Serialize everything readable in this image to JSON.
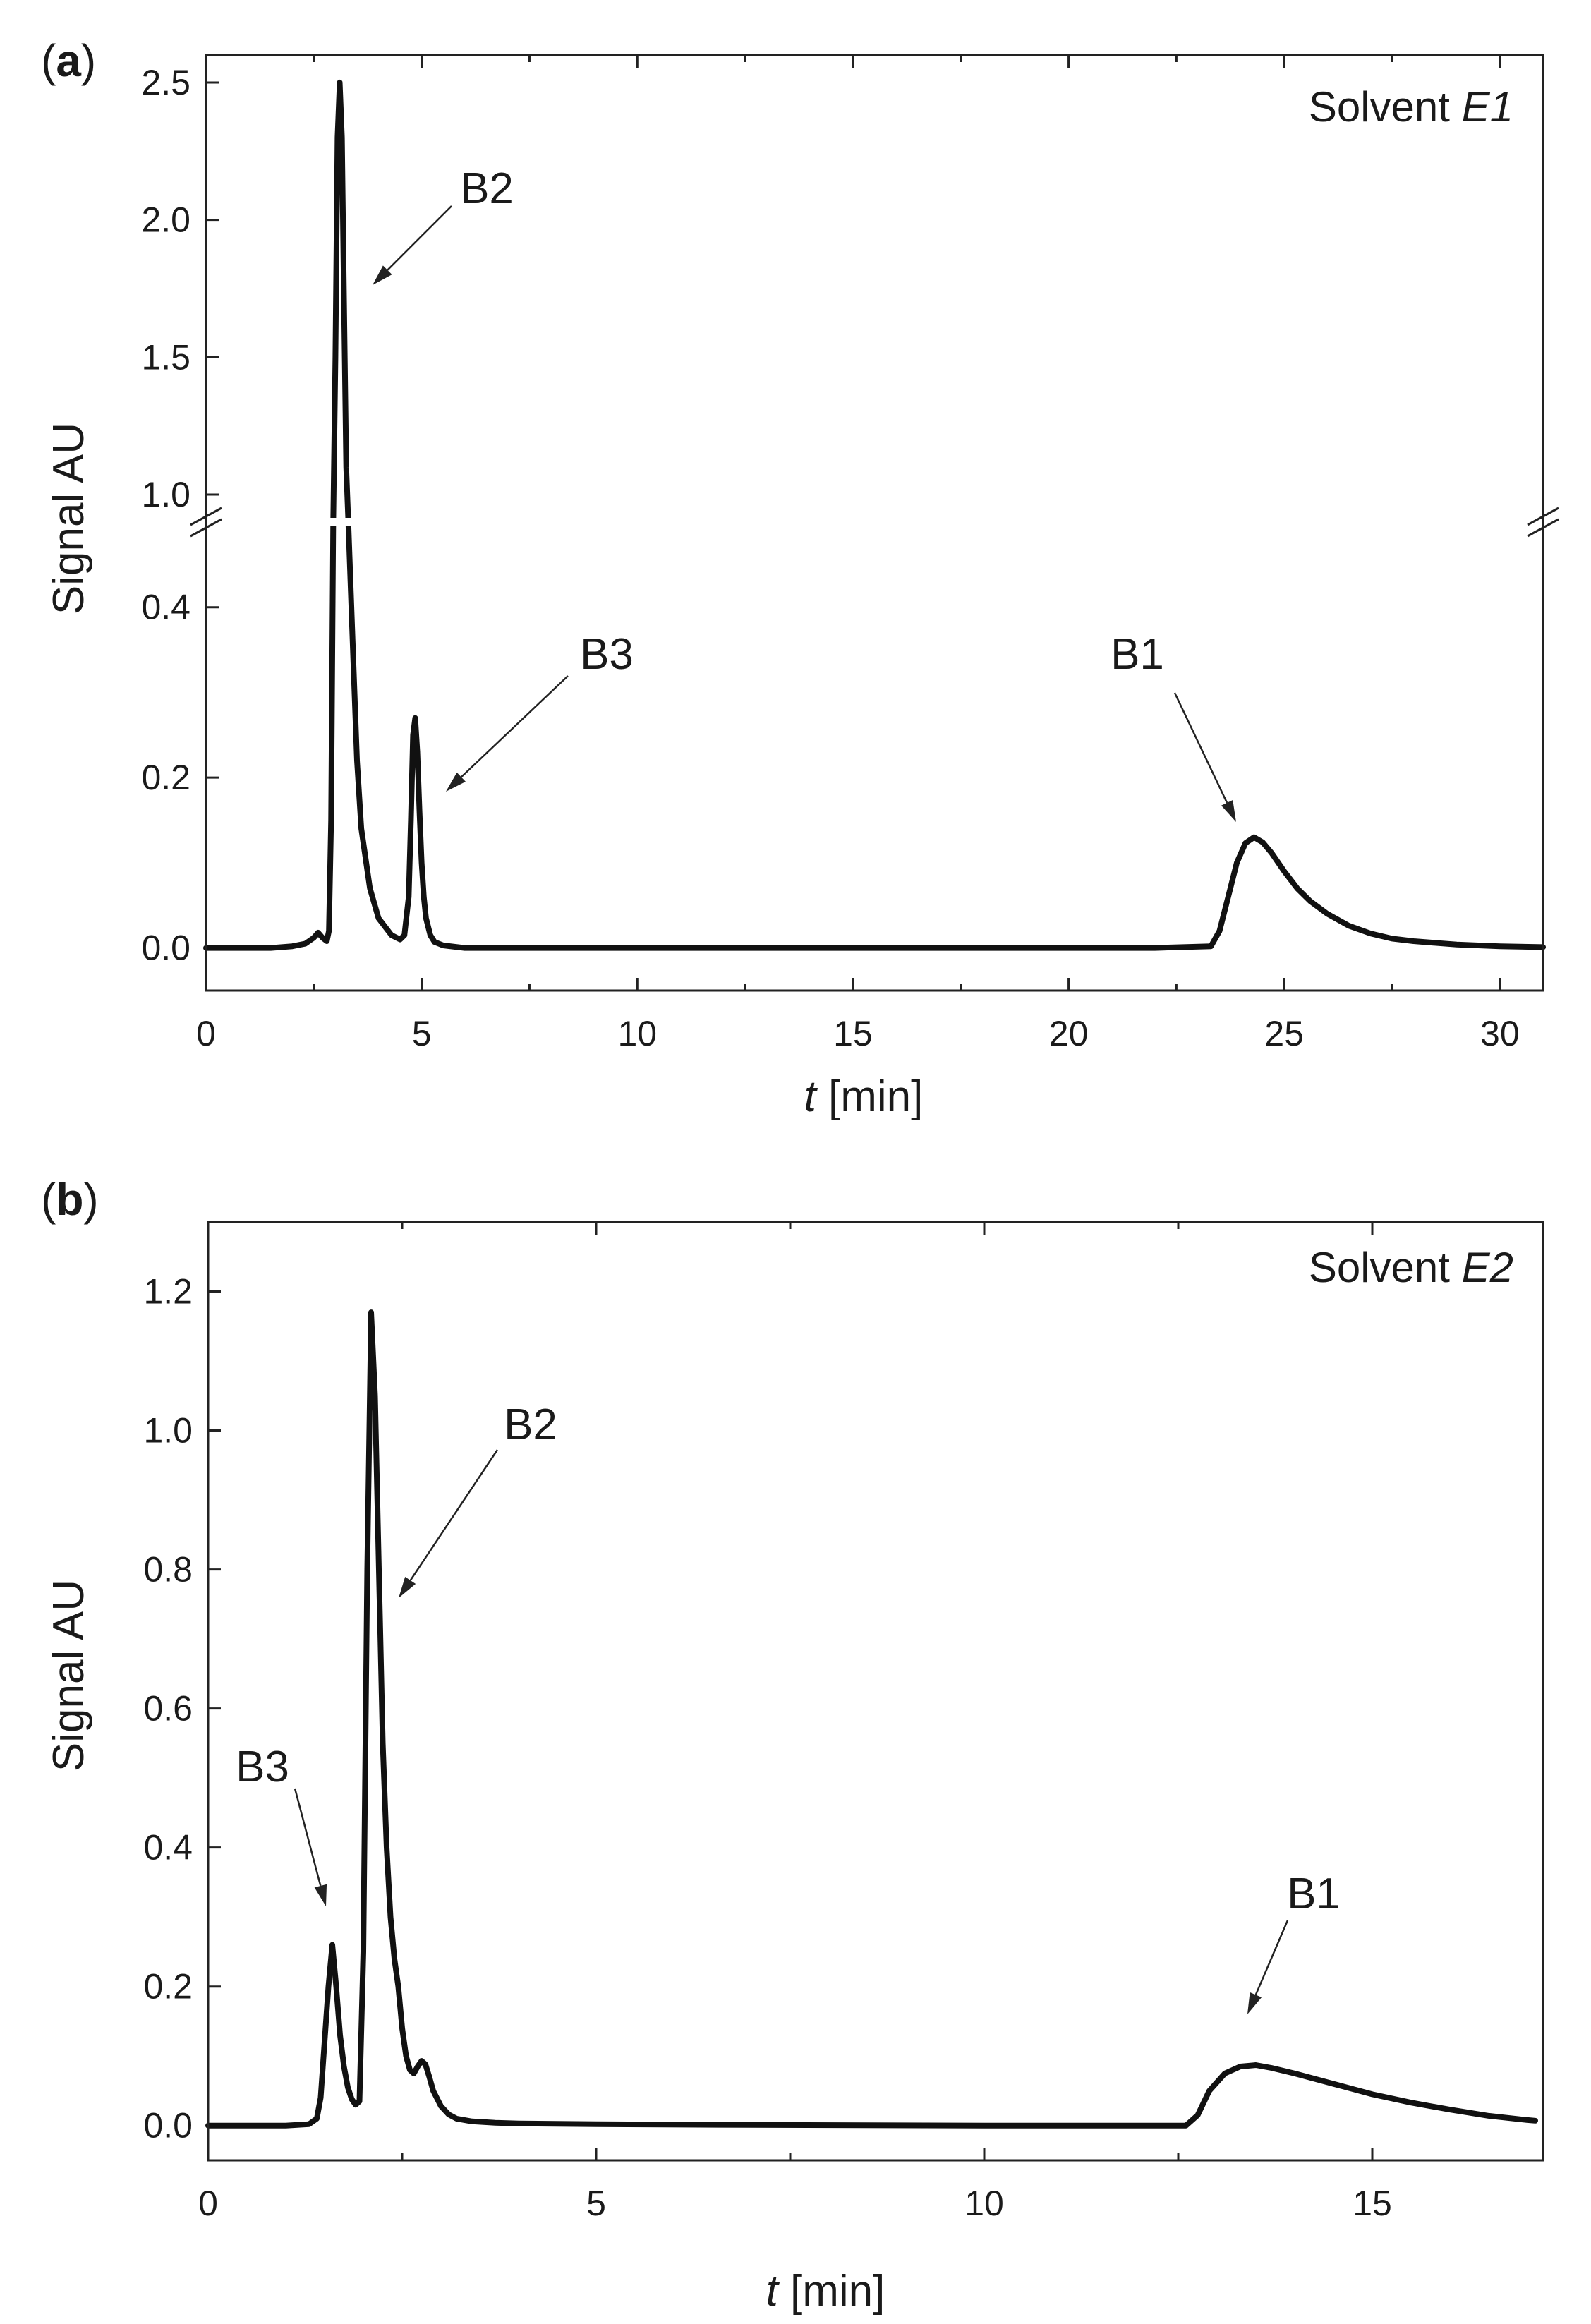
{
  "chart_data": [
    {
      "type": "line",
      "panel": "a",
      "solvent_prefix": "Solvent ",
      "solvent_code": "E1",
      "xlabel_var": "t",
      "xlabel_unit": " [min]",
      "ylabel": "Signal AU",
      "xlim": [
        0,
        31
      ],
      "xticks": [
        0,
        5,
        10,
        15,
        20,
        25,
        30
      ],
      "y_break": {
        "lower": [
          -0.05,
          0.5
        ],
        "upper": [
          0.9,
          2.6
        ]
      },
      "yticks_lower": [
        0.0,
        0.2,
        0.4
      ],
      "yticks_upper": [
        1.0,
        1.5,
        2.0,
        2.5
      ],
      "series": [
        {
          "x": [
            0,
            1.5,
            2.0,
            2.3,
            2.5,
            2.6,
            2.7,
            2.8,
            2.85,
            2.9,
            2.95,
            3.0,
            3.05,
            3.1,
            3.15,
            3.2,
            3.25,
            3.3,
            3.4,
            3.5,
            3.6,
            3.8,
            4.0,
            4.3,
            4.5,
            4.6,
            4.7,
            4.75,
            4.8,
            4.85,
            4.9,
            4.95,
            5.0,
            5.05,
            5.1,
            5.2,
            5.3,
            5.5,
            6.0,
            8.0,
            12.0,
            16.0,
            20.0,
            22.0,
            23.3,
            23.5,
            23.7,
            23.9,
            24.1,
            24.3,
            24.5,
            24.7,
            25.0,
            25.3,
            25.6,
            26.0,
            26.5,
            27.0,
            27.5,
            28.0,
            29.0,
            30.0,
            31.0
          ],
          "y": [
            0.0,
            0.0,
            0.002,
            0.005,
            0.012,
            0.018,
            0.012,
            0.008,
            0.02,
            0.15,
            0.6,
            1.5,
            2.3,
            2.5,
            2.3,
            1.7,
            1.1,
            0.7,
            0.36,
            0.22,
            0.14,
            0.07,
            0.035,
            0.015,
            0.01,
            0.015,
            0.06,
            0.15,
            0.25,
            0.27,
            0.23,
            0.16,
            0.1,
            0.06,
            0.035,
            0.015,
            0.007,
            0.003,
            0.0,
            0.0,
            0.0,
            0.0,
            0.0,
            0.0,
            0.002,
            0.02,
            0.06,
            0.1,
            0.123,
            0.13,
            0.124,
            0.112,
            0.09,
            0.07,
            0.055,
            0.04,
            0.026,
            0.017,
            0.011,
            0.008,
            0.004,
            0.002,
            0.001
          ]
        }
      ],
      "annotations": [
        {
          "text": "B2",
          "x": 3.2,
          "y": 2.2
        },
        {
          "text": "B3",
          "x": 4.9,
          "y": 0.27
        },
        {
          "text": "B1",
          "x": 24.3,
          "y": 0.13
        }
      ]
    },
    {
      "type": "line",
      "panel": "b",
      "solvent_prefix": "Solvent ",
      "solvent_code": "E2",
      "xlabel_var": "t",
      "xlabel_unit": " [min]",
      "ylabel": "Signal AU",
      "xlim": [
        0,
        17.2
      ],
      "ylim": [
        -0.05,
        1.3
      ],
      "xticks": [
        0,
        5,
        10,
        15
      ],
      "yticks": [
        0.0,
        0.2,
        0.4,
        0.6,
        0.8,
        1.0,
        1.2
      ],
      "series": [
        {
          "x": [
            0,
            1.0,
            1.3,
            1.4,
            1.45,
            1.5,
            1.55,
            1.6,
            1.65,
            1.7,
            1.75,
            1.8,
            1.85,
            1.9,
            1.95,
            2.0,
            2.05,
            2.1,
            2.15,
            2.2,
            2.25,
            2.3,
            2.35,
            2.4,
            2.45,
            2.5,
            2.55,
            2.6,
            2.65,
            2.7,
            2.75,
            2.8,
            2.85,
            2.9,
            3.0,
            3.1,
            3.2,
            3.4,
            3.7,
            4.0,
            5.0,
            7.0,
            10.0,
            12.0,
            12.6,
            12.75,
            12.9,
            13.1,
            13.3,
            13.5,
            13.7,
            14.0,
            14.5,
            15.0,
            15.5,
            16.0,
            16.5,
            17.0,
            17.1
          ],
          "y": [
            0.0,
            0.0,
            0.002,
            0.01,
            0.04,
            0.12,
            0.2,
            0.26,
            0.2,
            0.13,
            0.085,
            0.055,
            0.038,
            0.03,
            0.035,
            0.25,
            0.8,
            1.17,
            1.05,
            0.8,
            0.55,
            0.4,
            0.3,
            0.24,
            0.2,
            0.14,
            0.1,
            0.08,
            0.075,
            0.085,
            0.093,
            0.088,
            0.07,
            0.05,
            0.028,
            0.016,
            0.01,
            0.006,
            0.004,
            0.003,
            0.002,
            0.001,
            0.0,
            0.0,
            0.0,
            0.015,
            0.05,
            0.075,
            0.085,
            0.087,
            0.083,
            0.075,
            0.06,
            0.045,
            0.033,
            0.023,
            0.014,
            0.008,
            0.007
          ]
        }
      ],
      "annotations": [
        {
          "text": "B3",
          "x": 1.6,
          "y": 0.26
        },
        {
          "text": "B2",
          "x": 2.35,
          "y": 0.85
        },
        {
          "text": "B1",
          "x": 13.3,
          "y": 0.087
        }
      ]
    }
  ]
}
